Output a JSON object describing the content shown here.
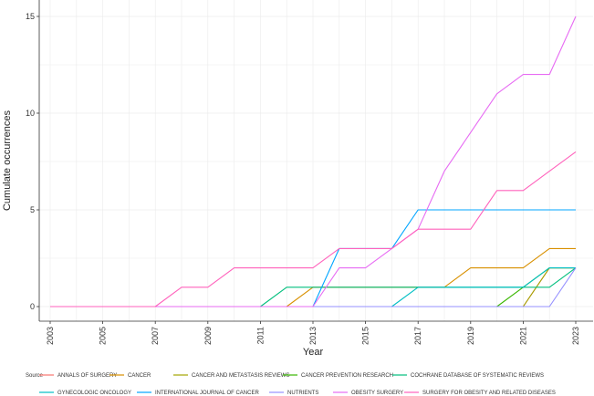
{
  "chart_data": {
    "type": "line",
    "title": "",
    "xlabel": "Year",
    "ylabel": "Cumulate occurrences",
    "xlim": [
      2003,
      2023
    ],
    "ylim": [
      -0.2,
      15.4
    ],
    "x_ticks": [
      "2003",
      "2005",
      "2007",
      "2009",
      "2011",
      "2013",
      "2015",
      "2017",
      "2019",
      "2021",
      "2023"
    ],
    "y_ticks": [
      {
        "value": 0,
        "label": "0"
      },
      {
        "value": 5,
        "label": "5"
      },
      {
        "value": 10,
        "label": "10"
      },
      {
        "value": 15,
        "label": "15"
      }
    ],
    "grid": true,
    "legend_position": "bottom",
    "legend_title": "Source",
    "x": [
      2003,
      2004,
      2005,
      2006,
      2007,
      2008,
      2009,
      2010,
      2011,
      2012,
      2013,
      2014,
      2015,
      2016,
      2017,
      2018,
      2019,
      2020,
      2021,
      2022,
      2023
    ],
    "series": [
      {
        "name": "ANNALS OF SURGERY",
        "color": "#F8766D",
        "values": [
          0,
          0,
          0,
          0,
          0,
          0,
          0,
          0,
          0,
          0,
          0,
          0,
          0,
          0,
          0,
          0,
          0,
          0,
          0,
          2,
          2
        ]
      },
      {
        "name": "CANCER",
        "color": "#D89000",
        "values": [
          0,
          0,
          0,
          0,
          0,
          0,
          0,
          0,
          0,
          0,
          1,
          1,
          1,
          1,
          1,
          1,
          2,
          2,
          2,
          3,
          3
        ]
      },
      {
        "name": "CANCER AND METASTASIS REVIEWS",
        "color": "#A3A500",
        "values": [
          0,
          0,
          0,
          0,
          0,
          0,
          0,
          0,
          0,
          0,
          0,
          0,
          0,
          0,
          0,
          0,
          0,
          0,
          0,
          2,
          2
        ]
      },
      {
        "name": "CANCER PREVENTION RESEARCH",
        "color": "#39B600",
        "values": [
          0,
          0,
          0,
          0,
          0,
          0,
          0,
          0,
          0,
          0,
          0,
          0,
          0,
          0,
          0,
          0,
          0,
          0,
          1,
          2,
          2
        ]
      },
      {
        "name": "COCHRANE DATABASE OF SYSTEMATIC REVIEWS",
        "color": "#00BF7D",
        "values": [
          0,
          0,
          0,
          0,
          0,
          0,
          0,
          0,
          0,
          1,
          1,
          1,
          1,
          1,
          1,
          1,
          1,
          1,
          1,
          1,
          2
        ]
      },
      {
        "name": "GYNECOLOGIC ONCOLOGY",
        "color": "#00BFC4",
        "values": [
          0,
          0,
          0,
          0,
          0,
          0,
          0,
          0,
          0,
          0,
          0,
          0,
          0,
          0,
          1,
          1,
          1,
          1,
          1,
          2,
          2
        ]
      },
      {
        "name": "INTERNATIONAL JOURNAL OF CANCER",
        "color": "#00A5FF",
        "values": [
          0,
          0,
          0,
          0,
          0,
          0,
          0,
          0,
          0,
          0,
          0,
          3,
          3,
          3,
          5,
          5,
          5,
          5,
          5,
          5,
          5
        ]
      },
      {
        "name": "NUTRIENTS",
        "color": "#9590FF",
        "values": [
          0,
          0,
          0,
          0,
          0,
          0,
          0,
          0,
          0,
          0,
          0,
          0,
          0,
          0,
          0,
          0,
          0,
          0,
          0,
          0,
          2
        ]
      },
      {
        "name": "OBESITY SURGERY",
        "color": "#E76BF3",
        "values": [
          0,
          0,
          0,
          0,
          0,
          0,
          0,
          0,
          0,
          0,
          0,
          2,
          2,
          3,
          4,
          7,
          9,
          11,
          12,
          12,
          15
        ]
      },
      {
        "name": "SURGERY FOR OBESITY AND RELATED DISEASES",
        "color": "#FF62BC",
        "values": [
          0,
          0,
          0,
          0,
          0,
          1,
          1,
          2,
          2,
          2,
          2,
          3,
          3,
          3,
          4,
          4,
          4,
          6,
          6,
          7,
          8
        ]
      }
    ]
  }
}
